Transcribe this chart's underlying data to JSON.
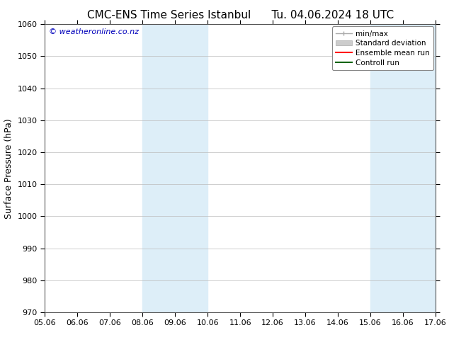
{
  "title_left": "CMC-ENS Time Series Istanbul",
  "title_right": "Tu. 04.06.2024 18 UTC",
  "ylabel": "Surface Pressure (hPa)",
  "ylim": [
    970,
    1060
  ],
  "yticks": [
    970,
    980,
    990,
    1000,
    1010,
    1020,
    1030,
    1040,
    1050,
    1060
  ],
  "xlim": [
    0,
    12
  ],
  "xtick_labels": [
    "05.06",
    "06.06",
    "07.06",
    "08.06",
    "09.06",
    "10.06",
    "11.06",
    "12.06",
    "13.06",
    "14.06",
    "15.06",
    "16.06",
    "17.06"
  ],
  "xtick_positions": [
    0,
    1,
    2,
    3,
    4,
    5,
    6,
    7,
    8,
    9,
    10,
    11,
    12
  ],
  "shaded_regions": [
    {
      "x_start": 3,
      "x_end": 5,
      "color": "#ddeef8"
    },
    {
      "x_start": 10,
      "x_end": 12,
      "color": "#ddeef8"
    }
  ],
  "watermark_text": "© weatheronline.co.nz",
  "watermark_color": "#0000bb",
  "legend_entries": [
    {
      "label": "min/max"
    },
    {
      "label": "Standard deviation"
    },
    {
      "label": "Ensemble mean run"
    },
    {
      "label": "Controll run"
    }
  ],
  "bg_color": "#ffffff",
  "plot_bg_color": "#ffffff",
  "grid_color": "#bbbbbb",
  "title_fontsize": 11,
  "axis_label_fontsize": 9,
  "tick_fontsize": 8,
  "watermark_fontsize": 8,
  "legend_fontsize": 7.5
}
